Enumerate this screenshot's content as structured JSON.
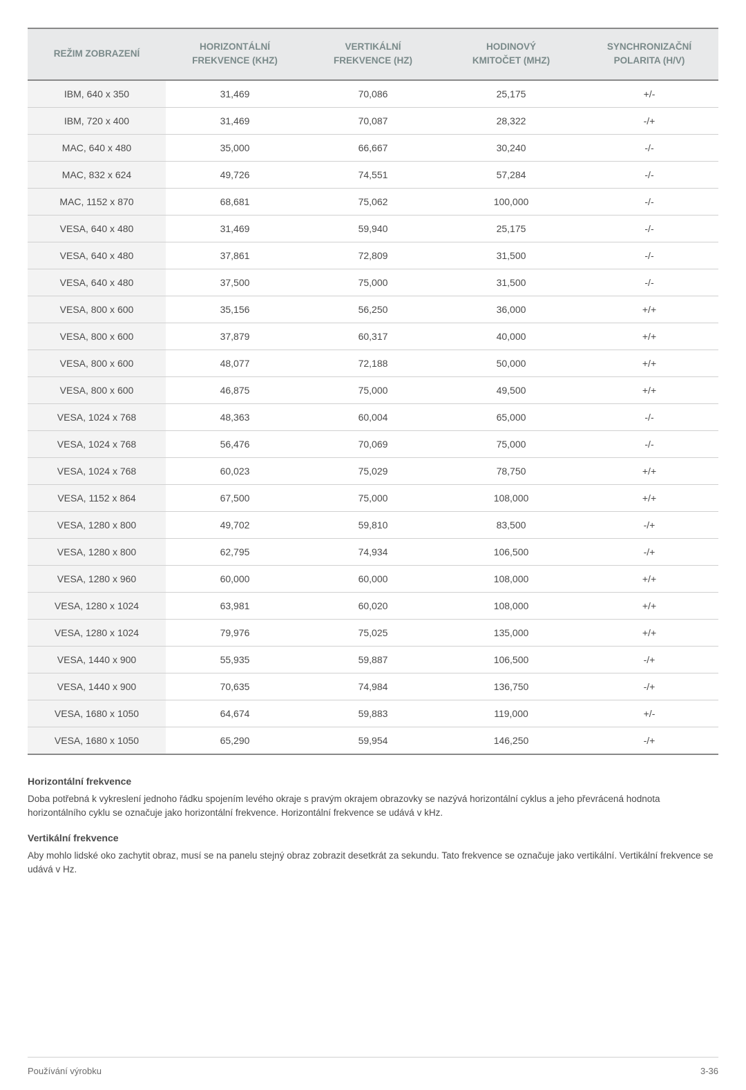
{
  "table": {
    "columns": [
      "REŽIM ZOBRAZENÍ",
      "HORIZONTÁLNÍ\nFREKVENCE (KHZ)",
      "VERTIKÁLNÍ\nFREKVENCE (HZ)",
      "HODINOVÝ\nKMITOČET (MHZ)",
      "SYNCHRONIZAČNÍ\nPOLARITA (H/V)"
    ],
    "column_widths_pct": [
      20,
      20,
      20,
      20,
      20
    ],
    "header_bg": "#e8e9ea",
    "header_color": "#7a8a8a",
    "first_col_bg": "#f3f3f3",
    "body_color": "#4a4a4a",
    "border_strong": "#888888",
    "border_light": "#d0d0d0",
    "header_fontsize": 13.5,
    "body_fontsize": 14,
    "rows": [
      [
        "IBM, 640 x 350",
        "31,469",
        "70,086",
        "25,175",
        "+/-"
      ],
      [
        "IBM, 720 x 400",
        "31,469",
        "70,087",
        "28,322",
        "-/+"
      ],
      [
        "MAC, 640 x 480",
        "35,000",
        "66,667",
        "30,240",
        "-/-"
      ],
      [
        "MAC, 832 x 624",
        "49,726",
        "74,551",
        "57,284",
        "-/-"
      ],
      [
        "MAC, 1152 x 870",
        "68,681",
        "75,062",
        "100,000",
        "-/-"
      ],
      [
        "VESA, 640 x 480",
        "31,469",
        "59,940",
        "25,175",
        "-/-"
      ],
      [
        "VESA, 640 x 480",
        "37,861",
        "72,809",
        "31,500",
        "-/-"
      ],
      [
        "VESA, 640 x 480",
        "37,500",
        "75,000",
        "31,500",
        "-/-"
      ],
      [
        "VESA, 800 x 600",
        "35,156",
        "56,250",
        "36,000",
        "+/+"
      ],
      [
        "VESA, 800 x 600",
        "37,879",
        "60,317",
        "40,000",
        "+/+"
      ],
      [
        "VESA, 800 x 600",
        "48,077",
        "72,188",
        "50,000",
        "+/+"
      ],
      [
        "VESA, 800 x 600",
        "46,875",
        "75,000",
        "49,500",
        "+/+"
      ],
      [
        "VESA, 1024 x 768",
        "48,363",
        "60,004",
        "65,000",
        "-/-"
      ],
      [
        "VESA, 1024 x 768",
        "56,476",
        "70,069",
        "75,000",
        "-/-"
      ],
      [
        "VESA, 1024 x 768",
        "60,023",
        "75,029",
        "78,750",
        "+/+"
      ],
      [
        "VESA, 1152 x 864",
        "67,500",
        "75,000",
        "108,000",
        "+/+"
      ],
      [
        "VESA, 1280 x 800",
        "49,702",
        "59,810",
        "83,500",
        "-/+"
      ],
      [
        "VESA, 1280 x 800",
        "62,795",
        "74,934",
        "106,500",
        "-/+"
      ],
      [
        "VESA, 1280 x 960",
        "60,000",
        "60,000",
        "108,000",
        "+/+"
      ],
      [
        "VESA, 1280 x 1024",
        "63,981",
        "60,020",
        "108,000",
        "+/+"
      ],
      [
        "VESA, 1280 x 1024",
        "79,976",
        "75,025",
        "135,000",
        "+/+"
      ],
      [
        "VESA, 1440 x 900",
        "55,935",
        "59,887",
        "106,500",
        "-/+"
      ],
      [
        "VESA, 1440 x 900",
        "70,635",
        "74,984",
        "136,750",
        "-/+"
      ],
      [
        "VESA, 1680 x 1050",
        "64,674",
        "59,883",
        "119,000",
        "+/-"
      ],
      [
        "VESA, 1680 x 1050",
        "65,290",
        "59,954",
        "146,250",
        "-/+"
      ]
    ]
  },
  "sections": {
    "h_title": "Horizontální frekvence",
    "h_text": "Doba potřebná k vykreslení jednoho řádku spojením levého okraje s pravým okrajem obrazovky se nazývá horizontální cyklus a jeho převrácená hodnota horizontálního cyklu se označuje jako horizontální frekvence. Horizontální frekvence se udává v kHz.",
    "v_title": "Vertikální frekvence",
    "v_text": "Aby mohlo lidské oko zachytit obraz, musí se na panelu stejný obraz zobrazit desetkrát za sekundu. Tato frekvence se označuje jako vertikální. Vertikální frekvence se udává v Hz."
  },
  "footer": {
    "left": "Používání výrobku",
    "right": "3-36"
  }
}
